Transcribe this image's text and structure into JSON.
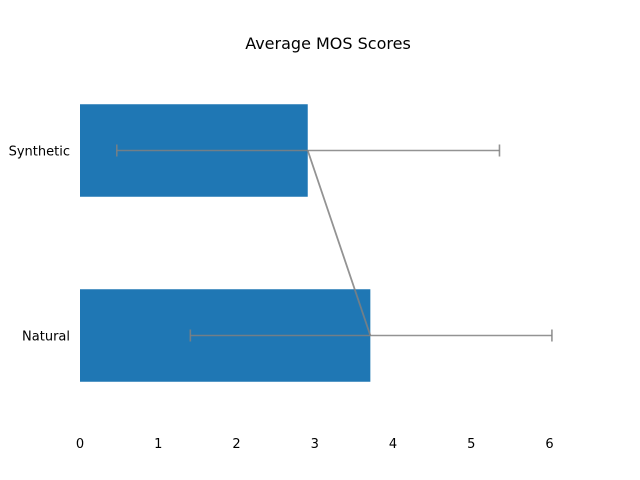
{
  "chart_data": {
    "type": "bar",
    "orientation": "horizontal",
    "title": "Average MOS Scores",
    "xlabel": "",
    "ylabel": "",
    "categories": [
      "Synthetic",
      "Natural"
    ],
    "values": [
      2.91,
      3.71
    ],
    "error_low": [
      0.47,
      1.41
    ],
    "error_high": [
      5.36,
      6.03
    ],
    "xlim": [
      0,
      6.9
    ],
    "x_ticks": [
      "0",
      "1",
      "2",
      "3",
      "4",
      "5",
      "6"
    ],
    "grid": false,
    "legend": "none",
    "colors": {
      "bar": "#1f77b4",
      "errorbar": "#808080",
      "connector": "#808080"
    }
  }
}
